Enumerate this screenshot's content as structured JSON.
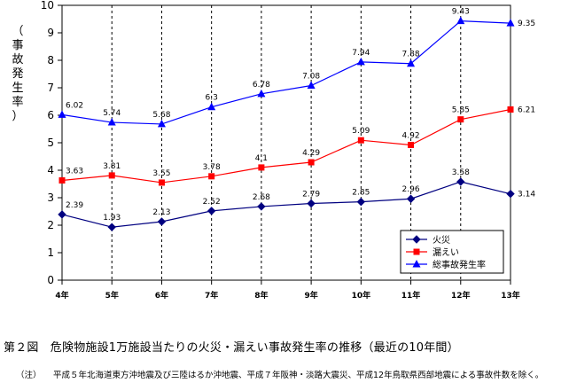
{
  "chart_data": {
    "type": "line",
    "title": "第２図　危険物施設1万施設当たりの火災・漏えい事故発生率の推移（最近の10年間）",
    "ylabel": "（事故発生率）",
    "xlabel": "",
    "categories": [
      "4年",
      "5年",
      "6年",
      "7年",
      "8年",
      "9年",
      "10年",
      "11年",
      "12年",
      "13年"
    ],
    "ylim": [
      0,
      10
    ],
    "yticks": [
      0,
      1,
      2,
      3,
      4,
      5,
      6,
      7,
      8,
      9,
      10
    ],
    "grid": "vertical dashed",
    "legend": "bottom-right",
    "series": [
      {
        "name": "火災",
        "color": "#000080",
        "marker": "diamond",
        "values": [
          2.39,
          1.93,
          2.13,
          2.52,
          2.68,
          2.79,
          2.85,
          2.96,
          3.58,
          3.14
        ],
        "labels": [
          "2.39",
          "1.93",
          "2.13",
          "2.52",
          "2.68",
          "2.79",
          "2.85",
          "2.96",
          "3.58",
          "3.14"
        ]
      },
      {
        "name": "漏えい",
        "color": "#ff0000",
        "marker": "square",
        "values": [
          3.63,
          3.81,
          3.55,
          3.78,
          4.1,
          4.29,
          5.09,
          4.92,
          5.85,
          6.21
        ],
        "labels": [
          "3.63",
          "3.81",
          "3.55",
          "3.78",
          "4.1",
          "4.29",
          "5.09",
          "4.92",
          "5.85",
          "6.21"
        ]
      },
      {
        "name": "総事故発生率",
        "color": "#0000ff",
        "marker": "triangle",
        "values": [
          6.02,
          5.74,
          5.68,
          6.3,
          6.78,
          7.08,
          7.94,
          7.88,
          9.43,
          9.35
        ],
        "labels": [
          "6.02",
          "5.74",
          "5.68",
          "6.3",
          "6.78",
          "7.08",
          "7.94",
          "7.88",
          "9.43",
          "9.35"
        ]
      }
    ]
  },
  "ylabel_chars": [
    "（",
    "事",
    "故",
    "発",
    "生",
    "率",
    "）"
  ],
  "caption": "第２図　危険物施設1万施設当たりの火災・漏えい事故発生率の推移（最近の10年間）",
  "note": {
    "mark": "（注）",
    "text": "平成５年北海道東方沖地震及び三陸はるか沖地震、平成７年阪神・淡路大震災、平成12年鳥取県西部地震による事故件数を除く。"
  }
}
